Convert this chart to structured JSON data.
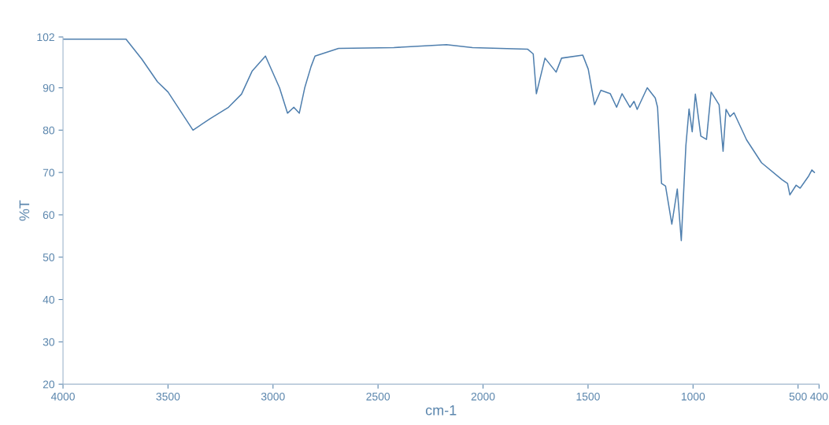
{
  "chart_data": {
    "type": "line",
    "xlabel": "cm-1",
    "ylabel": "%T",
    "xlim": [
      4000,
      400
    ],
    "xticks": [
      4000,
      3500,
      3000,
      2500,
      2000,
      1500,
      1000,
      500,
      400
    ],
    "ylim": [
      20,
      102
    ],
    "yticks": [
      20,
      30,
      40,
      50,
      60,
      70,
      80,
      90,
      102
    ],
    "grid": false,
    "legend": false,
    "series": [
      {
        "color": "#4f7fae",
        "x": [
          4000,
          3700,
          3625,
          3550,
          3500,
          3381,
          3300,
          3212,
          3150,
          3100,
          3036,
          2969,
          2931,
          2901,
          2875,
          2849,
          2819,
          2800,
          2688,
          2425,
          2174,
          2050,
          1787,
          1761,
          1746,
          1705,
          1652,
          1626,
          1525,
          1499,
          1469,
          1439,
          1394,
          1364,
          1338,
          1300,
          1281,
          1266,
          1218,
          1180,
          1169,
          1150,
          1131,
          1101,
          1075,
          1056,
          1034,
          1019,
          1004,
          989,
          963,
          936,
          914,
          876,
          857,
          843,
          824,
          805,
          745,
          674,
          576,
          550,
          539,
          509,
          490,
          449,
          434,
          422
        ],
        "values": [
          101.5,
          101.5,
          96.8,
          91.4,
          89,
          80,
          82.7,
          85.4,
          88.5,
          93.9,
          97.5,
          90,
          84,
          85.4,
          84,
          90,
          95,
          97.5,
          99.3,
          99.5,
          100.2,
          99.5,
          99.1,
          98,
          88.6,
          97,
          93.7,
          97,
          97.7,
          94.4,
          86,
          89.4,
          88.6,
          85.4,
          88.6,
          85.4,
          86.8,
          84.9,
          90,
          87.6,
          85.4,
          67.4,
          66.8,
          57.8,
          66.1,
          53.9,
          76.4,
          85,
          79.6,
          88.5,
          78.6,
          77.8,
          89,
          86,
          75,
          84.9,
          83.2,
          84.1,
          77.7,
          72.3,
          68.3,
          67.4,
          64.7,
          67,
          66.3,
          69.2,
          70.6,
          70
        ]
      }
    ]
  }
}
